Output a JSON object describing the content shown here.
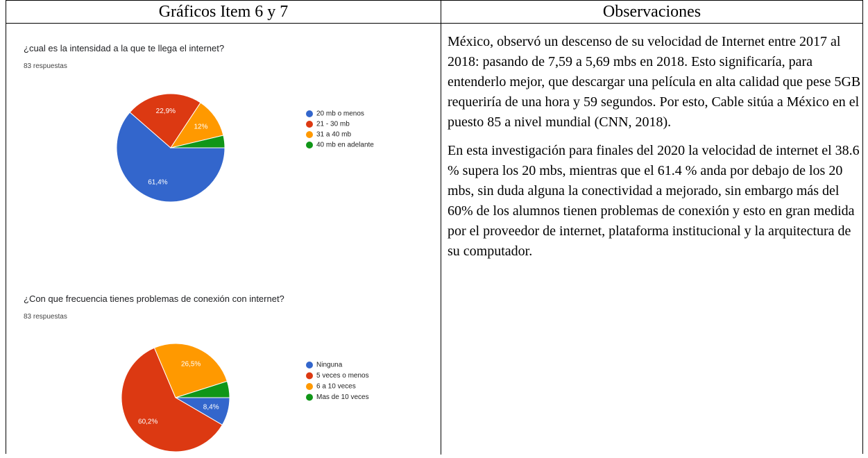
{
  "table": {
    "headers": [
      "Gráficos Item 6 y 7",
      "Observaciones"
    ]
  },
  "chart_data": [
    {
      "type": "pie",
      "title": "¿cual es la intensidad a la que te llega el internet?",
      "subtitle": "83 respuestas",
      "categories": [
        "20 mb o menos",
        "21 - 30 mb",
        "31 a 40 mb",
        "40 mb en adelante"
      ],
      "values": [
        61.4,
        22.9,
        12,
        3.7
      ],
      "value_labels": [
        "61,4%",
        "22,9%",
        "12%",
        null
      ],
      "colors": [
        "#3366cc",
        "#dc3912",
        "#ff9900",
        "#109618"
      ]
    },
    {
      "type": "pie",
      "title": "¿Con que frecuencia tienes problemas de conexión con internet?",
      "subtitle": "83 respuestas",
      "categories": [
        "Ninguna",
        "5 veces o menos",
        "6 a 10 veces",
        "Mas de 10 veces"
      ],
      "values": [
        8.4,
        60.2,
        26.5,
        4.9
      ],
      "value_labels": [
        "8,4%",
        "60,2%",
        "26,5%",
        null
      ],
      "colors": [
        "#3366cc",
        "#dc3912",
        "#ff9900",
        "#109618"
      ]
    }
  ],
  "observations": [
    "México, observó un descenso de su velocidad de Internet entre 2017 al 2018: pasando de 7,59 a 5,69 mbs en 2018. Esto significaría, para entenderlo mejor, que descargar una película en alta calidad que pese 5GB requeriría de una hora y 59 segundos. Por esto, Cable sitúa a México en el puesto 85 a nivel mundial (CNN, 2018).",
    "En esta investigación para finales del 2020 la velocidad de internet el 38.6 % supera los 20 mbs, mientras que el 61.4 % anda por debajo de los 20 mbs, sin duda alguna la conectividad a mejorado, sin embargo más del 60% de los alumnos tienen problemas de conexión y esto en gran medida por el proveedor de internet, plataforma institucional y la arquitectura de su computador."
  ]
}
